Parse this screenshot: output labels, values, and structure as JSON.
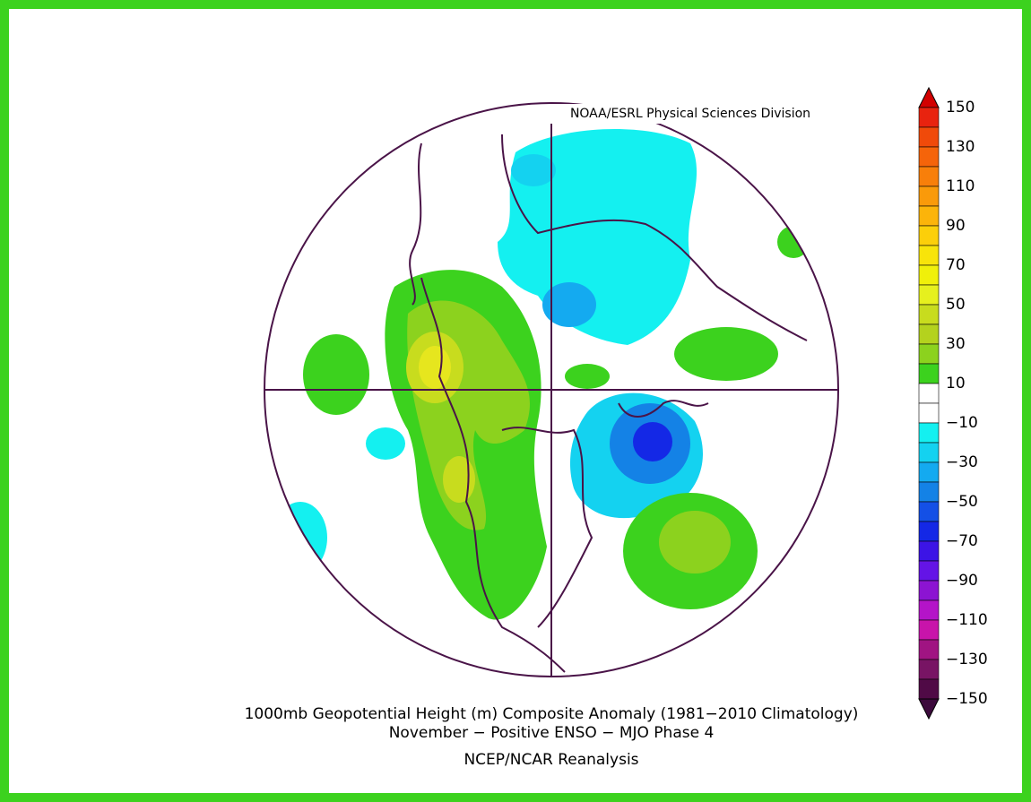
{
  "credit": "NOAA/ESRL Physical Sciences Division",
  "title": "1000mb Geopotential Height (m) Composite Anomaly (1981−2010 Climatology)",
  "subtitle": "November − Positive ENSO − MJO Phase 4",
  "source": "NCEP/NCAR Reanalysis",
  "colorbar": {
    "labels": [
      "150",
      "130",
      "110",
      "90",
      "70",
      "50",
      "30",
      "10",
      "−10",
      "−30",
      "−50",
      "−70",
      "−90",
      "−110",
      "−130",
      "−150"
    ],
    "top_color": "#d20000",
    "bottom_color": "#3c0a3c",
    "colors": [
      "#e8230f",
      "#f04a0a",
      "#f5640a",
      "#f87f0a",
      "#fa9a0a",
      "#fcb40a",
      "#fccf0a",
      "#f8e40a",
      "#f0f00a",
      "#e6f01e",
      "#c8dc1e",
      "#b4d21e",
      "#8cd21e",
      "#3cd21e",
      "#ffffff",
      "#ffffff",
      "#14f0f0",
      "#14d2f0",
      "#14aaf0",
      "#1482e6",
      "#1450e6",
      "#1428e6",
      "#3c14e6",
      "#6414e6",
      "#8c14d2",
      "#b414c8",
      "#c814aa",
      "#a01482",
      "#781464",
      "#500a46"
    ]
  }
}
